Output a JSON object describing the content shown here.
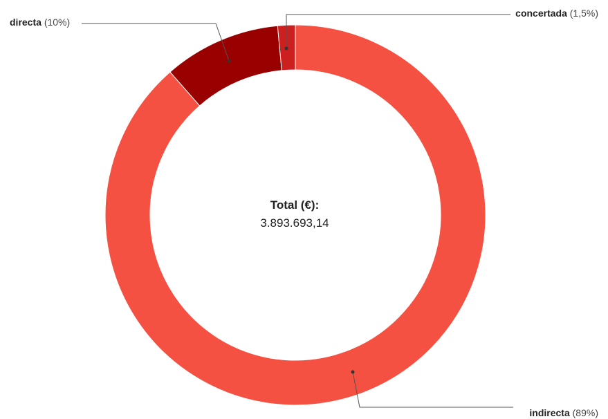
{
  "chart_data": {
    "type": "pie",
    "title": "",
    "center_label": "Total (€):",
    "center_value": "3.893.693,14",
    "slices": [
      {
        "name": "indirecta",
        "value": 89,
        "value_label": "(89%)",
        "color": "#f55142"
      },
      {
        "name": "directa",
        "value": 10,
        "value_label": "(10%)",
        "color": "#990000"
      },
      {
        "name": "concertada",
        "value": 1.5,
        "value_label": "(1,5%)",
        "color": "#cc1f1f"
      }
    ],
    "legend": "none"
  }
}
